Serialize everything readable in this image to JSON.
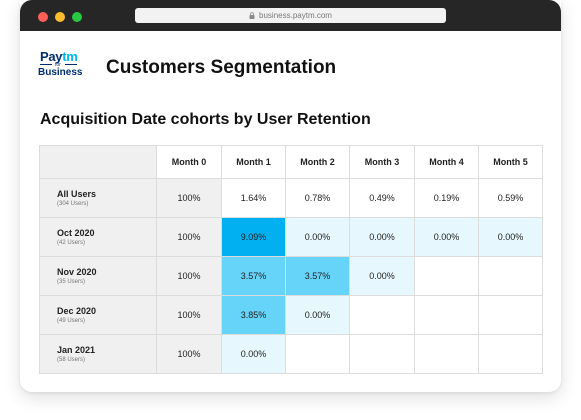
{
  "browser": {
    "url": "business.paytm.com"
  },
  "logo": {
    "brand_main": "Pay",
    "brand_accent": "tm",
    "for_text": "for",
    "business_text": "Business",
    "brand_color": "#002e6e",
    "accent_color": "#00b9f1"
  },
  "page": {
    "title": "Customers Segmentation",
    "section_title": "Acquisition Date cohorts by User Retention"
  },
  "table": {
    "columns": [
      "Month 0",
      "Month 1",
      "Month 2",
      "Month 3",
      "Month 4",
      "Month 5"
    ],
    "rows": [
      {
        "label": "All Users",
        "sub": "(304 Users)",
        "cells": [
          {
            "value": "100%",
            "tone": "base"
          },
          {
            "value": "1.64%",
            "tone": "white"
          },
          {
            "value": "0.78%",
            "tone": "white"
          },
          {
            "value": "0.49%",
            "tone": "white"
          },
          {
            "value": "0.19%",
            "tone": "white"
          },
          {
            "value": "0.59%",
            "tone": "white"
          }
        ]
      },
      {
        "label": "Oct 2020",
        "sub": "(42 Users)",
        "cells": [
          {
            "value": "100%",
            "tone": "base"
          },
          {
            "value": "9.09%",
            "tone": "dark"
          },
          {
            "value": "0.00%",
            "tone": "light"
          },
          {
            "value": "0.00%",
            "tone": "light"
          },
          {
            "value": "0.00%",
            "tone": "light"
          },
          {
            "value": "0.00%",
            "tone": "light"
          }
        ]
      },
      {
        "label": "Nov 2020",
        "sub": "(35 Users)",
        "cells": [
          {
            "value": "100%",
            "tone": "base"
          },
          {
            "value": "3.57%",
            "tone": "mid"
          },
          {
            "value": "3.57%",
            "tone": "mid"
          },
          {
            "value": "0.00%",
            "tone": "light"
          },
          {
            "value": "",
            "tone": "white"
          },
          {
            "value": "",
            "tone": "white"
          }
        ]
      },
      {
        "label": "Dec 2020",
        "sub": "(49 Users)",
        "cells": [
          {
            "value": "100%",
            "tone": "base"
          },
          {
            "value": "3.85%",
            "tone": "mid"
          },
          {
            "value": "0.00%",
            "tone": "light"
          },
          {
            "value": "",
            "tone": "white"
          },
          {
            "value": "",
            "tone": "white"
          },
          {
            "value": "",
            "tone": "white"
          }
        ]
      },
      {
        "label": "Jan 2021",
        "sub": "(58 Users)",
        "cells": [
          {
            "value": "100%",
            "tone": "base"
          },
          {
            "value": "0.00%",
            "tone": "light"
          },
          {
            "value": "",
            "tone": "white"
          },
          {
            "value": "",
            "tone": "white"
          },
          {
            "value": "",
            "tone": "white"
          },
          {
            "value": "",
            "tone": "white"
          }
        ]
      }
    ]
  },
  "colors": {
    "heat_dark": "#00b0f0",
    "heat_mid": "#66d3f8",
    "heat_light": "#e6f7fd",
    "base": "#f0f0f0"
  }
}
